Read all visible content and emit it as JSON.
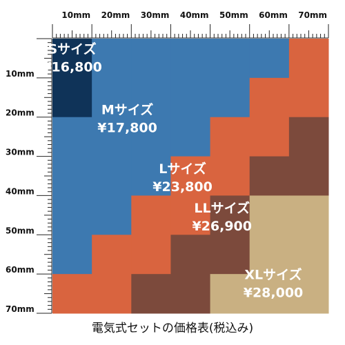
{
  "chart_data": {
    "type": "heatmap",
    "title": "電気式セットの価格表(税込み)",
    "x_axis": {
      "unit": "mm",
      "range": [
        0,
        70
      ],
      "tick_labels": [
        "10mm",
        "20mm",
        "30mm",
        "40mm",
        "50mm",
        "60mm",
        "70mm"
      ]
    },
    "y_axis": {
      "unit": "mm",
      "range": [
        0,
        70
      ],
      "tick_labels": [
        "10mm",
        "20mm",
        "30mm",
        "40mm",
        "50mm",
        "60mm",
        "70mm"
      ]
    },
    "tiers": [
      {
        "size": "Sサイズ",
        "price": "¥16,800",
        "color": "#0f3358",
        "label_at": [
          5,
          4.5
        ]
      },
      {
        "size": "Mサイズ",
        "price": "¥17,800",
        "color": "#3d79b0",
        "label_at": [
          19,
          20
        ]
      },
      {
        "size": "Lサイズ",
        "price": "¥23,800",
        "color": "#d9643f",
        "label_at": [
          33,
          35
        ]
      },
      {
        "size": "LLサイズ",
        "price": "¥26,900",
        "color": "#7c4a3c",
        "label_at": [
          43,
          45
        ]
      },
      {
        "size": "XLサイズ",
        "price": "¥28,000",
        "color": "#c9b082",
        "label_at": [
          56,
          62
        ]
      }
    ],
    "column_boundaries": {
      "x_edges": [
        0,
        10,
        20,
        30,
        40,
        50,
        60,
        70
      ],
      "s_to_m_y": [
        20,
        0,
        0,
        0,
        0,
        0,
        0
      ],
      "m_to_l_y": [
        60,
        50,
        40,
        30,
        20,
        10,
        0
      ],
      "l_to_ll_y": [
        70,
        70,
        60,
        50,
        40,
        30,
        20
      ],
      "ll_to_xl_y": [
        70,
        70,
        70,
        70,
        60,
        40,
        40
      ]
    }
  }
}
